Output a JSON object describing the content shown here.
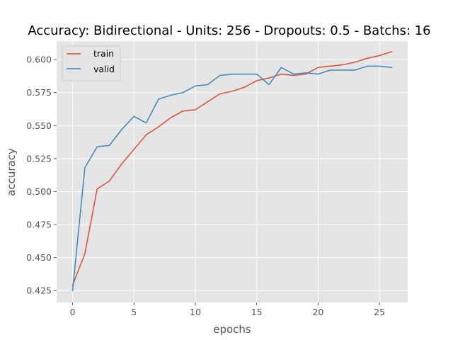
{
  "chart_data": {
    "type": "line",
    "title": "Accuracy: Bidirectional - Units: 256 - Dropouts: 0.5 - Batchs: 16",
    "xlabel": "epochs",
    "ylabel": "accuracy",
    "xlim": [
      -1.3,
      27.3
    ],
    "ylim": [
      0.416,
      0.614
    ],
    "xticks": [
      0,
      5,
      10,
      15,
      20,
      25
    ],
    "xtick_labels": [
      "0",
      "5",
      "10",
      "15",
      "20",
      "25"
    ],
    "yticks": [
      0.425,
      0.45,
      0.475,
      0.5,
      0.525,
      0.55,
      0.575,
      0.6
    ],
    "ytick_labels": [
      "0.425",
      "0.450",
      "0.475",
      "0.500",
      "0.525",
      "0.550",
      "0.575",
      "0.600"
    ],
    "grid": true,
    "legend_position": "upper-left",
    "background_color": "#e5e5e5",
    "grid_color": "#ffffff",
    "x": [
      0,
      1,
      2,
      3,
      4,
      5,
      6,
      7,
      8,
      9,
      10,
      11,
      12,
      13,
      14,
      15,
      16,
      17,
      18,
      19,
      20,
      21,
      22,
      23,
      24,
      25,
      26
    ],
    "series": [
      {
        "name": "train",
        "color": "#e24a33",
        "values": [
          0.429,
          0.453,
          0.502,
          0.508,
          0.521,
          0.532,
          0.543,
          0.549,
          0.556,
          0.561,
          0.562,
          0.568,
          0.574,
          0.576,
          0.579,
          0.584,
          0.586,
          0.589,
          0.588,
          0.589,
          0.594,
          0.595,
          0.596,
          0.598,
          0.601,
          0.603,
          0.606
        ]
      },
      {
        "name": "valid",
        "color": "#348abd",
        "values": [
          0.425,
          0.518,
          0.534,
          0.535,
          0.547,
          0.557,
          0.552,
          0.57,
          0.573,
          0.575,
          0.58,
          0.581,
          0.588,
          0.589,
          0.589,
          0.589,
          0.581,
          0.594,
          0.589,
          0.59,
          0.589,
          0.592,
          0.592,
          0.592,
          0.595,
          0.595,
          0.594
        ]
      }
    ]
  }
}
